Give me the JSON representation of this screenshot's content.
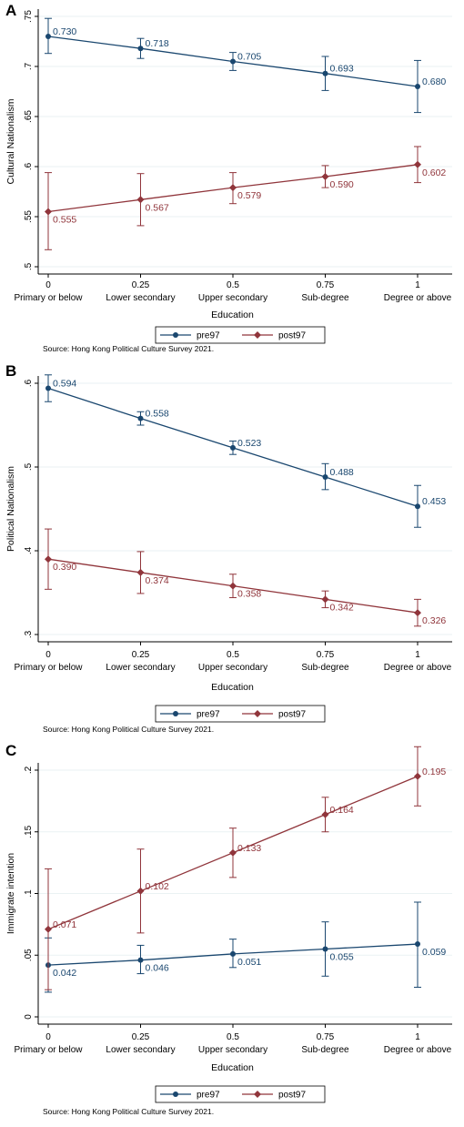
{
  "colors": {
    "pre97": "#1a476f",
    "post97": "#90353b",
    "grid": "#eaf2f3",
    "axis": "#000000"
  },
  "chart_data": [
    {
      "type": "line",
      "panel": "A",
      "ylabel": "Cultural Nationalism",
      "xlabel": "Education",
      "x": [
        0,
        0.25,
        0.5,
        0.75,
        1
      ],
      "x_tick_labels": [
        "0",
        "0.25",
        "0.5",
        "0.75",
        "1"
      ],
      "categories": [
        "Primary or below",
        "Lower secondary",
        "Upper secondary",
        "Sub-degree",
        "Degree or above"
      ],
      "ylim": [
        0.5,
        0.75
      ],
      "y_ticks": [
        0.5,
        0.55,
        0.6,
        0.65,
        0.7,
        0.75
      ],
      "y_tick_labels": [
        ".5",
        ".55",
        ".6",
        ".65",
        ".7",
        ".75"
      ],
      "grid": true,
      "legend_position": "bottom",
      "series": [
        {
          "name": "pre97",
          "marker": "circle",
          "values": [
            0.73,
            0.718,
            0.705,
            0.693,
            0.68
          ],
          "labels": [
            "0.730",
            "0.718",
            "0.705",
            "0.693",
            "0.680"
          ],
          "ci_low": [
            0.713,
            0.708,
            0.696,
            0.676,
            0.654
          ],
          "ci_high": [
            0.748,
            0.728,
            0.714,
            0.71,
            0.706
          ]
        },
        {
          "name": "post97",
          "marker": "diamond",
          "values": [
            0.555,
            0.567,
            0.579,
            0.59,
            0.602
          ],
          "labels": [
            "0.555",
            "0.567",
            "0.579",
            "0.590",
            "0.602"
          ],
          "ci_low": [
            0.517,
            0.541,
            0.563,
            0.579,
            0.584
          ],
          "ci_high": [
            0.594,
            0.593,
            0.594,
            0.601,
            0.62
          ]
        }
      ],
      "source": "Source: Hong Kong Political Culture Survey 2021."
    },
    {
      "type": "line",
      "panel": "B",
      "ylabel": "Political Nationalism",
      "xlabel": "Education",
      "x": [
        0,
        0.25,
        0.5,
        0.75,
        1
      ],
      "x_tick_labels": [
        "0",
        "0.25",
        "0.5",
        "0.75",
        "1"
      ],
      "categories": [
        "Primary or below",
        "Lower secondary",
        "Upper secondary",
        "Sub-degree",
        "Degree or above"
      ],
      "ylim": [
        0.3,
        0.6
      ],
      "y_ticks": [
        0.3,
        0.4,
        0.5,
        0.6
      ],
      "y_tick_labels": [
        ".3",
        ".4",
        ".5",
        ".6"
      ],
      "grid": true,
      "legend_position": "bottom",
      "series": [
        {
          "name": "pre97",
          "marker": "circle",
          "values": [
            0.594,
            0.558,
            0.523,
            0.488,
            0.453
          ],
          "labels": [
            "0.594",
            "0.558",
            "0.523",
            "0.488",
            "0.453"
          ],
          "ci_low": [
            0.578,
            0.55,
            0.515,
            0.473,
            0.428
          ],
          "ci_high": [
            0.61,
            0.566,
            0.531,
            0.504,
            0.478
          ]
        },
        {
          "name": "post97",
          "marker": "diamond",
          "values": [
            0.39,
            0.374,
            0.358,
            0.342,
            0.326
          ],
          "labels": [
            "0.390",
            "0.374",
            "0.358",
            "0.342",
            "0.326"
          ],
          "ci_low": [
            0.354,
            0.349,
            0.344,
            0.332,
            0.31
          ],
          "ci_high": [
            0.426,
            0.399,
            0.372,
            0.352,
            0.342
          ]
        }
      ],
      "source": "Source: Hong Kong Political Culture Survey 2021."
    },
    {
      "type": "line",
      "panel": "C",
      "ylabel": "Immigrate intention",
      "xlabel": "Education",
      "x": [
        0,
        0.25,
        0.5,
        0.75,
        1
      ],
      "x_tick_labels": [
        "0",
        "0.25",
        "0.5",
        "0.75",
        "1"
      ],
      "categories": [
        "Primary or below",
        "Lower secondary",
        "Upper secondary",
        "Sub-degree",
        "Degree or above"
      ],
      "ylim": [
        0,
        0.2
      ],
      "y_ticks": [
        0,
        0.05,
        0.1,
        0.15,
        0.2
      ],
      "y_tick_labels": [
        "0",
        ".05",
        ".1",
        ".15",
        ".2"
      ],
      "grid": true,
      "legend_position": "bottom",
      "series": [
        {
          "name": "pre97",
          "marker": "circle",
          "values": [
            0.042,
            0.046,
            0.051,
            0.055,
            0.059
          ],
          "labels": [
            "0.042",
            "0.046",
            "0.051",
            "0.055",
            "0.059"
          ],
          "ci_low": [
            0.02,
            0.035,
            0.04,
            0.033,
            0.024
          ],
          "ci_high": [
            0.064,
            0.058,
            0.063,
            0.077,
            0.093
          ]
        },
        {
          "name": "post97",
          "marker": "diamond",
          "values": [
            0.071,
            0.102,
            0.133,
            0.164,
            0.195
          ],
          "labels": [
            "0.071",
            "0.102",
            "0.133",
            "0.164",
            "0.195"
          ],
          "ci_low": [
            0.022,
            0.068,
            0.113,
            0.15,
            0.171
          ],
          "ci_high": [
            0.12,
            0.136,
            0.153,
            0.178,
            0.219
          ]
        }
      ],
      "source": "Source: Hong Kong Political Culture Survey 2021."
    }
  ]
}
